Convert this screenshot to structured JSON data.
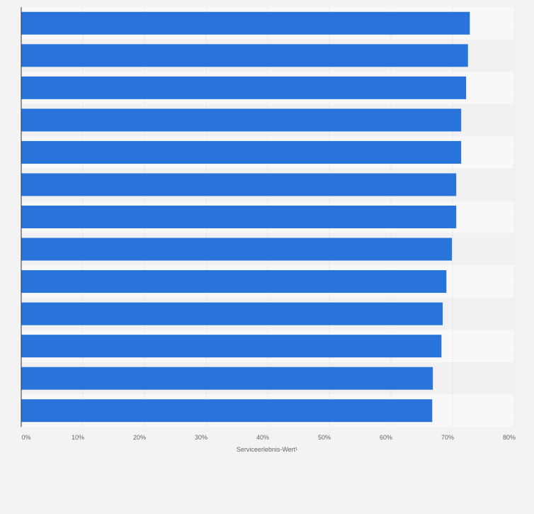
{
  "chart_data": {
    "type": "bar",
    "orientation": "horizontal",
    "categories": [
      "",
      "",
      "",
      "",
      "",
      "",
      "",
      "",
      "",
      "",
      "",
      "",
      ""
    ],
    "values": [
      72.8,
      72.5,
      72.2,
      71.4,
      71.4,
      70.6,
      70.6,
      69.9,
      69.0,
      68.4,
      68.2,
      66.8,
      66.7
    ],
    "xlabel": "Serviceerlebnis-Wert¹",
    "ylabel": "",
    "title": "",
    "xlim": [
      0,
      80
    ],
    "x_ticks": [
      "0%",
      "10%",
      "20%",
      "30%",
      "40%",
      "50%",
      "60%",
      "70%",
      "80%"
    ],
    "grid": true,
    "legend": "none",
    "colors": {
      "bar": "#2874db",
      "page_background": "#f3f3f3",
      "row_light": "#f8f8f8",
      "row_dark": "#f1f1f1",
      "gridline": "#d8d8d8",
      "axis": "#333333",
      "tick_text": "#666666"
    }
  }
}
